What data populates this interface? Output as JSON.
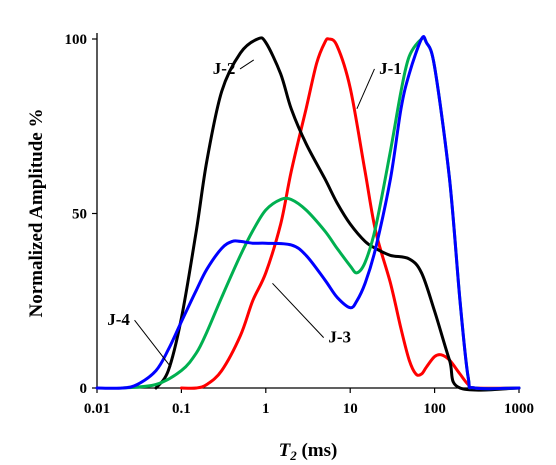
{
  "chart_data": {
    "type": "line",
    "xscale": "log",
    "xlim": [
      0.01,
      1000
    ],
    "ylim": [
      0,
      100
    ],
    "xticks": [
      "0.01",
      "0.1",
      "1",
      "10",
      "100",
      "1000"
    ],
    "yticks": [
      "0",
      "50",
      "100"
    ],
    "xlabel_main": "T",
    "xlabel_sub": "2",
    "xlabel_unit": " (ms)",
    "ylabel": "Normalized Amplitude  %",
    "grid": false,
    "series": [
      {
        "name": "J-1",
        "color": "#ff0000",
        "points": [
          [
            0.1,
            0
          ],
          [
            0.15,
            0
          ],
          [
            0.2,
            1
          ],
          [
            0.3,
            5
          ],
          [
            0.5,
            15
          ],
          [
            0.7,
            25
          ],
          [
            1,
            33
          ],
          [
            1.5,
            47
          ],
          [
            2,
            62
          ],
          [
            3,
            80
          ],
          [
            4,
            93
          ],
          [
            5,
            99
          ],
          [
            5.6,
            100
          ],
          [
            7,
            98
          ],
          [
            10,
            86
          ],
          [
            15,
            62
          ],
          [
            20,
            45
          ],
          [
            30,
            30
          ],
          [
            40,
            17
          ],
          [
            50,
            8
          ],
          [
            60,
            4
          ],
          [
            70,
            4
          ],
          [
            80,
            6
          ],
          [
            100,
            9
          ],
          [
            120,
            9.5
          ],
          [
            150,
            8
          ],
          [
            200,
            4
          ],
          [
            250,
            1
          ],
          [
            300,
            0
          ],
          [
            1000,
            0
          ]
        ]
      },
      {
        "name": "J-2",
        "color": "#000000",
        "points": [
          [
            0.05,
            0
          ],
          [
            0.07,
            5
          ],
          [
            0.1,
            20
          ],
          [
            0.15,
            45
          ],
          [
            0.2,
            65
          ],
          [
            0.3,
            85
          ],
          [
            0.5,
            96
          ],
          [
            0.8,
            100
          ],
          [
            1,
            99
          ],
          [
            1.5,
            90
          ],
          [
            2,
            80
          ],
          [
            3,
            70
          ],
          [
            5,
            60
          ],
          [
            7,
            53
          ],
          [
            10,
            47
          ],
          [
            15,
            42
          ],
          [
            20,
            40
          ],
          [
            30,
            38
          ],
          [
            50,
            37
          ],
          [
            70,
            33
          ],
          [
            100,
            22
          ],
          [
            150,
            8
          ],
          [
            200,
            0
          ],
          [
            1000,
            0
          ]
        ]
      },
      {
        "name": "J-3",
        "color": "#00b050",
        "points": [
          [
            0.02,
            0
          ],
          [
            0.05,
            1
          ],
          [
            0.1,
            5
          ],
          [
            0.15,
            10
          ],
          [
            0.2,
            16
          ],
          [
            0.3,
            26
          ],
          [
            0.5,
            38
          ],
          [
            0.7,
            45
          ],
          [
            1,
            51
          ],
          [
            1.5,
            54
          ],
          [
            2,
            54
          ],
          [
            3,
            51
          ],
          [
            5,
            45
          ],
          [
            7,
            40
          ],
          [
            10,
            35
          ],
          [
            12,
            33
          ],
          [
            15,
            36
          ],
          [
            20,
            46
          ],
          [
            30,
            68
          ],
          [
            40,
            85
          ],
          [
            50,
            95
          ],
          [
            70,
            100
          ],
          [
            80,
            99
          ],
          [
            100,
            92
          ],
          [
            150,
            60
          ],
          [
            200,
            25
          ],
          [
            250,
            3
          ],
          [
            300,
            0
          ],
          [
            1000,
            0
          ]
        ]
      },
      {
        "name": "J-4",
        "color": "#0000ff",
        "points": [
          [
            0.01,
            0
          ],
          [
            0.02,
            0
          ],
          [
            0.03,
            1
          ],
          [
            0.05,
            5
          ],
          [
            0.07,
            11
          ],
          [
            0.1,
            19
          ],
          [
            0.15,
            28
          ],
          [
            0.2,
            34
          ],
          [
            0.3,
            40
          ],
          [
            0.4,
            42
          ],
          [
            0.5,
            42
          ],
          [
            0.7,
            41.5
          ],
          [
            1,
            41.5
          ],
          [
            2,
            41
          ],
          [
            3,
            38
          ],
          [
            5,
            31
          ],
          [
            7,
            26
          ],
          [
            10,
            23
          ],
          [
            12,
            25
          ],
          [
            15,
            30
          ],
          [
            20,
            40
          ],
          [
            30,
            60
          ],
          [
            40,
            80
          ],
          [
            50,
            90
          ],
          [
            70,
            100
          ],
          [
            80,
            99
          ],
          [
            100,
            92
          ],
          [
            150,
            60
          ],
          [
            200,
            25
          ],
          [
            250,
            3
          ],
          [
            300,
            0
          ],
          [
            1000,
            0
          ]
        ]
      }
    ],
    "labels": [
      {
        "text": "J-1",
        "at": [
          30,
          90
        ],
        "leader_to": [
          12,
          80
        ]
      },
      {
        "text": "J-2",
        "at": [
          0.32,
          90
        ],
        "leader_to": [
          0.72,
          94
        ]
      },
      {
        "text": "J-3",
        "at": [
          7.5,
          13
        ],
        "leader_to": [
          1.2,
          30
        ]
      },
      {
        "text": "J-4",
        "at": [
          0.018,
          18
        ],
        "leader_to": [
          0.075,
          6
        ]
      }
    ]
  }
}
